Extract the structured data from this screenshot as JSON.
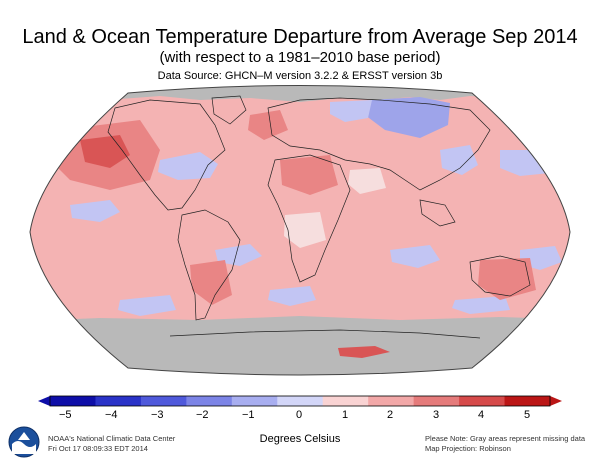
{
  "header": {
    "title": "Land & Ocean Temperature Departure from Average Sep 2014",
    "subtitle": "(with respect to a 1981–2010 base period)",
    "source": "Data Source: GHCN–M version 3.2.2 & ERSST version 3b"
  },
  "colorbar": {
    "ticks": [
      "−5",
      "−4",
      "−3",
      "−2",
      "−1",
      "0",
      "1",
      "2",
      "3",
      "4",
      "5"
    ],
    "colors": [
      "#0e0ea8",
      "#2a33c8",
      "#4f59db",
      "#7c84e6",
      "#a8aef0",
      "#d3d6f8",
      "#f9d3d3",
      "#f2a8a8",
      "#e57b7b",
      "#d64a4a",
      "#bb1616"
    ],
    "label": "Degrees Celsius"
  },
  "footer": {
    "agency": "NOAA's National Climatic Data Center",
    "date": "Fri Oct 17 08:09:33 EDT 2014",
    "note1": "Please Note: Gray areas represent missing data",
    "note2": "Map Projection: Robinson"
  },
  "map": {
    "projection": "Robinson",
    "colors": {
      "base": "#f4b3b3",
      "warm": "#e98585",
      "hot": "#d95555",
      "cool": "#c2c5f3",
      "cold": "#9ea4ea",
      "neutral": "#f6dede",
      "missing": "#b9b9b9"
    }
  }
}
